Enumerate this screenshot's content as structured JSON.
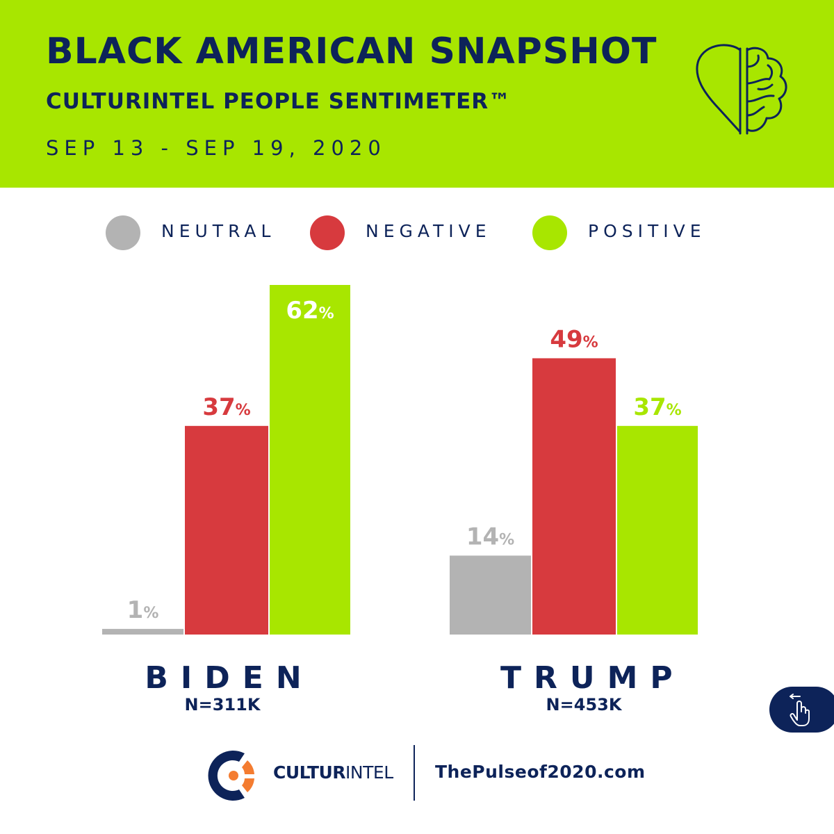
{
  "header": {
    "title": "BLACK AMERICAN SNAPSHOT",
    "subtitle": "CULTURINTEL PEOPLE SENTIMETER™",
    "dates": "SEP 13 - SEP 19, 2020"
  },
  "colors": {
    "brand_green": "#a8e600",
    "navy": "#0d2359",
    "neutral": "#b3b3b3",
    "negative": "#d73a3e",
    "positive": "#a8e600",
    "orange": "#f47c30"
  },
  "legend": [
    {
      "label": "NEUTRAL",
      "color": "#b3b3b3"
    },
    {
      "label": "NEGATIVE",
      "color": "#d73a3e"
    },
    {
      "label": "POSITIVE",
      "color": "#a8e600"
    }
  ],
  "chart_data": {
    "type": "bar",
    "title": "",
    "xlabel": "",
    "ylabel": "",
    "ylim": [
      0,
      62
    ],
    "categories": [
      "BIDEN",
      "TRUMP"
    ],
    "sample_sizes": [
      "N=311K",
      "N=453K"
    ],
    "series": [
      {
        "name": "NEUTRAL",
        "values": [
          1,
          14
        ]
      },
      {
        "name": "NEGATIVE",
        "values": [
          37,
          49
        ]
      },
      {
        "name": "POSITIVE",
        "values": [
          62,
          37
        ]
      }
    ],
    "value_suffix": "%"
  },
  "footer": {
    "brand_bold": "CULTUR",
    "brand_light": "INTEL",
    "website": "ThePulseof2020.com"
  },
  "nav_button": {
    "icon": "swipe-hand-icon"
  }
}
